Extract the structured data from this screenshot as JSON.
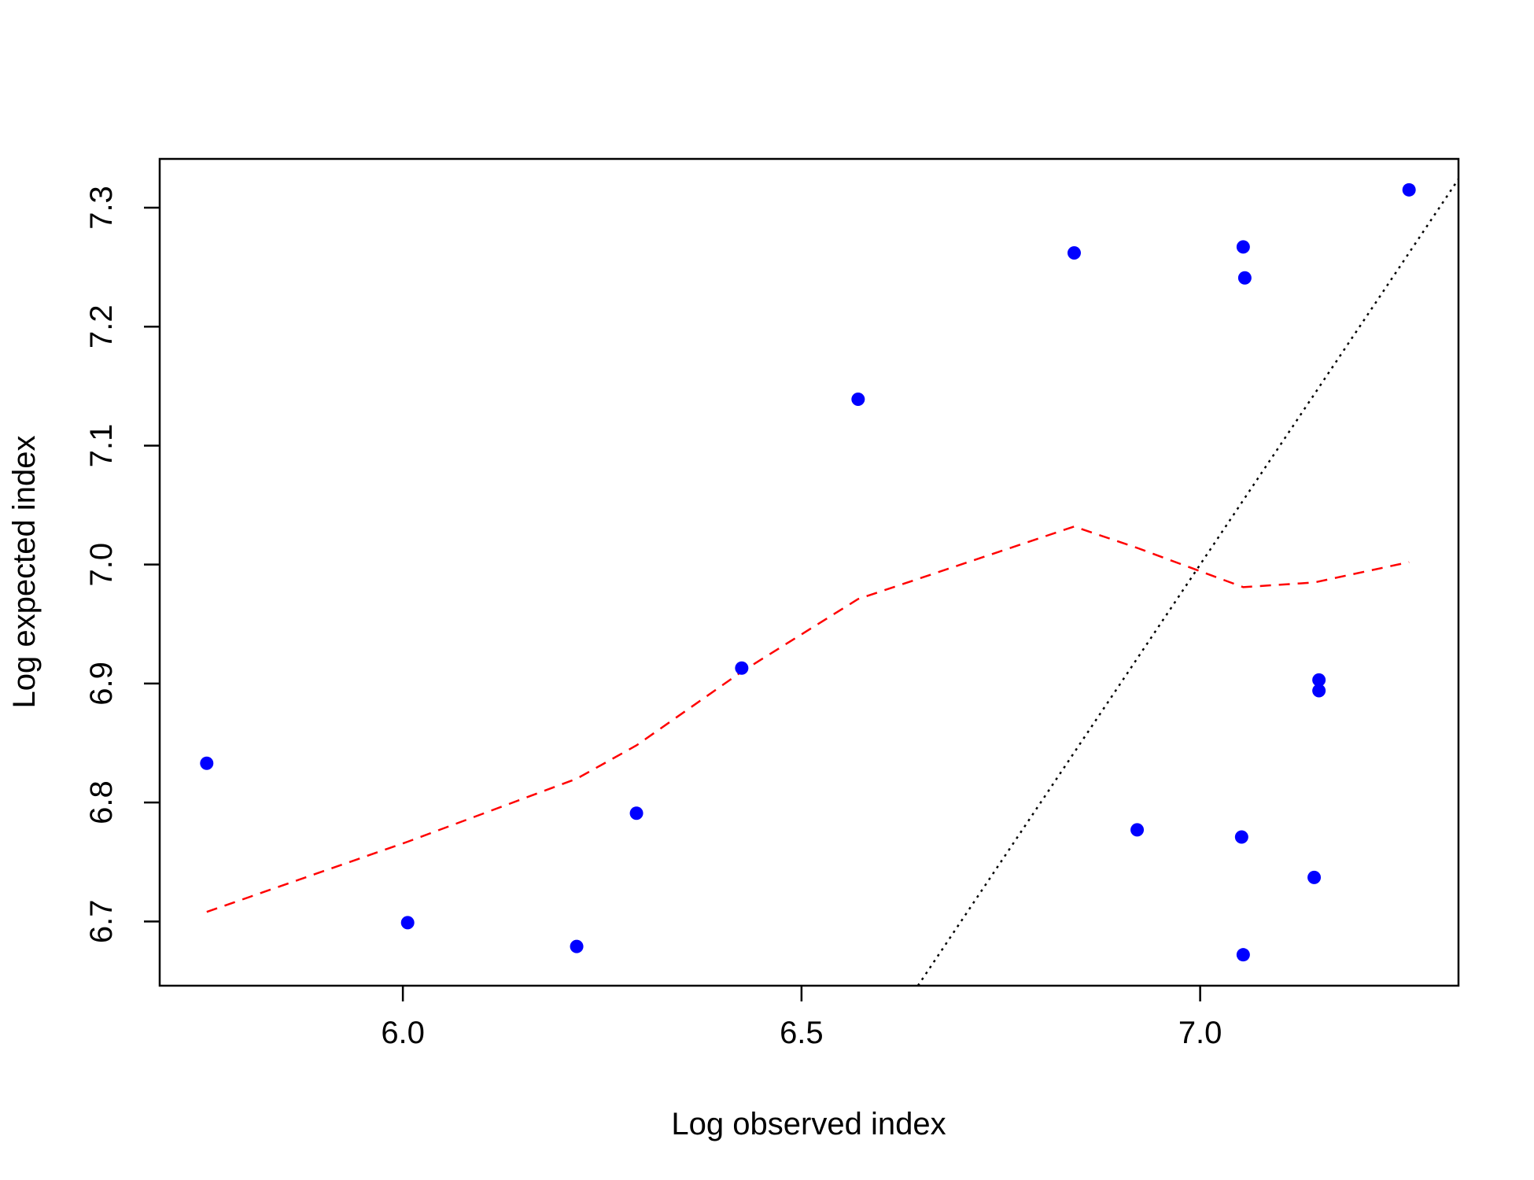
{
  "chart_data": {
    "type": "scatter",
    "title": "",
    "xlabel": "Log observed index",
    "ylabel": "Log expected index",
    "xlim": [
      5.695,
      7.324
    ],
    "ylim": [
      6.646,
      7.341
    ],
    "x_ticks": [
      6.0,
      6.5,
      7.0
    ],
    "x_tick_labels": [
      "6.0",
      "6.5",
      "7.0"
    ],
    "y_ticks": [
      6.7,
      6.8,
      6.9,
      7.0,
      7.1,
      7.2,
      7.3
    ],
    "y_tick_labels": [
      "6.7",
      "6.8",
      "6.9",
      "7.0",
      "7.1",
      "7.2",
      "7.3"
    ],
    "grid": false,
    "legend": "none",
    "points": {
      "color": "#0000ff",
      "x": [
        5.754,
        6.006,
        6.218,
        6.293,
        6.425,
        6.571,
        6.842,
        6.921,
        7.052,
        7.054,
        7.054,
        7.056,
        7.143,
        7.149,
        7.149,
        7.262
      ],
      "y": [
        6.833,
        6.699,
        6.679,
        6.791,
        6.913,
        7.139,
        7.262,
        6.777,
        6.771,
        6.672,
        7.267,
        7.241,
        6.737,
        6.903,
        6.894,
        7.315
      ]
    },
    "smooth_line": {
      "color": "#ff0000",
      "style": "dashed",
      "x": [
        5.754,
        6.006,
        6.218,
        6.293,
        6.425,
        6.571,
        6.842,
        6.921,
        7.054,
        7.143,
        7.262
      ],
      "y": [
        6.708,
        6.767,
        6.82,
        6.848,
        6.91,
        6.971,
        7.032,
        7.014,
        6.981,
        6.985,
        7.002
      ]
    },
    "reference_line": {
      "color": "#000000",
      "style": "dotted",
      "x": [
        6.646,
        7.324
      ],
      "y": [
        6.646,
        7.324
      ]
    }
  }
}
